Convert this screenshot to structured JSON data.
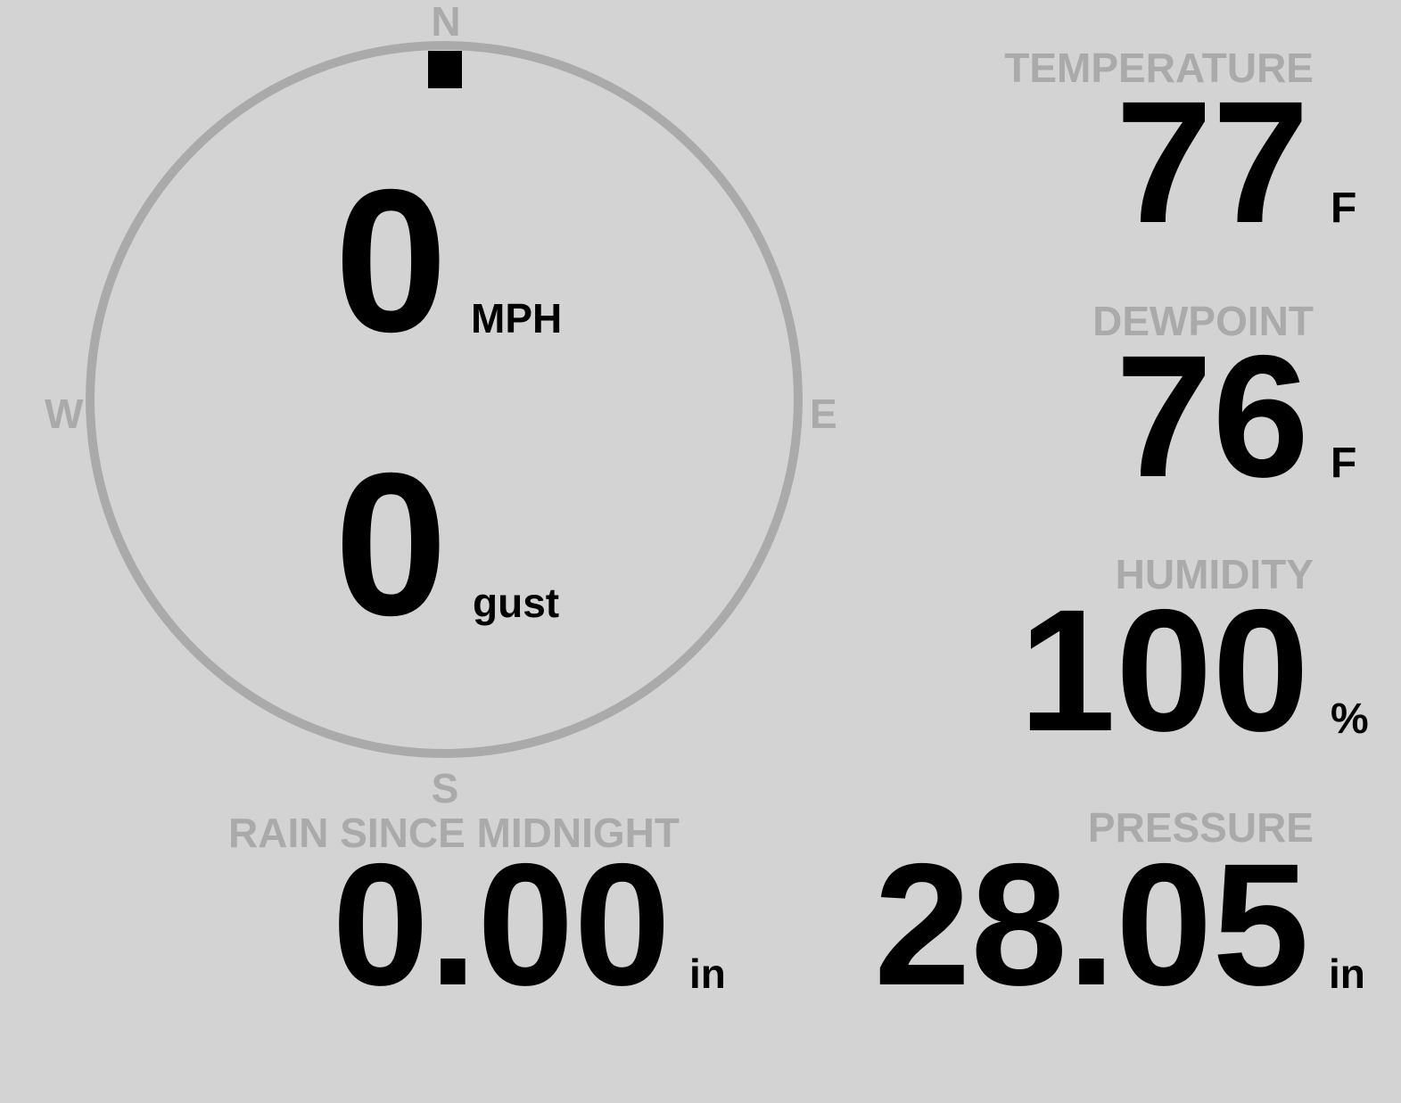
{
  "compass": {
    "n": "N",
    "e": "E",
    "s": "S",
    "w": "W",
    "wind_direction_deg": 0,
    "ring_color": "#aaaaaa",
    "marker_color": "#000000"
  },
  "wind": {
    "speed": "0",
    "speed_unit": "MPH",
    "gust": "0",
    "gust_unit": "gust"
  },
  "temperature": {
    "label": "TEMPERATURE",
    "value": "77",
    "unit": "F"
  },
  "dewpoint": {
    "label": "DEWPOINT",
    "value": "76",
    "unit": "F"
  },
  "humidity": {
    "label": "HUMIDITY",
    "value": "100",
    "unit": "%"
  },
  "rain": {
    "label": "RAIN SINCE MIDNIGHT",
    "value": "0.00",
    "unit": "in"
  },
  "pressure": {
    "label": "PRESSURE",
    "value": "28.05",
    "unit": "in"
  }
}
